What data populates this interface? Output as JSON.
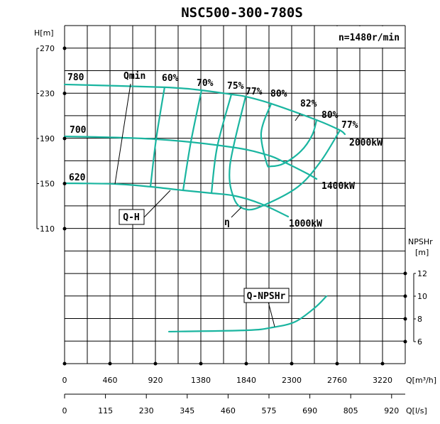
{
  "chart_data": {
    "type": "line",
    "title": "NSC500-300-780S",
    "speed_label": "n=1480r/min",
    "x_axis": {
      "label": "Q[m³/h]",
      "range": [
        0,
        3450
      ],
      "ticks": [
        "0",
        "460",
        "920",
        "1380",
        "1840",
        "2300",
        "2760",
        "3220"
      ]
    },
    "x2_axis": {
      "label": "Q[l/s]",
      "ticks": [
        "0",
        "115",
        "230",
        "345",
        "460",
        "575",
        "690",
        "805",
        "920"
      ]
    },
    "y_axis": {
      "label": "H[m]",
      "ticks": [
        "270",
        "230",
        "190",
        "150",
        "110"
      ]
    },
    "y2_axis": {
      "label": "NPSHr",
      "unit": "[m]",
      "ticks": [
        "12",
        "10",
        "8",
        "6"
      ]
    },
    "grid": true,
    "series": [
      {
        "name": "780",
        "kind": "Q-H",
        "points": [
          [
            0,
            237.9
          ],
          [
            1013,
            235.4
          ],
          [
            1387,
            232.8
          ],
          [
            1689,
            229.1
          ],
          [
            1833,
            227.2
          ],
          [
            2092,
            220.9
          ],
          [
            2552,
            206.4
          ],
          [
            2782,
            197.6
          ],
          [
            2839,
            193.8
          ]
        ]
      },
      {
        "name": "700",
        "kind": "Q-H",
        "points": [
          [
            0,
            191.9
          ],
          [
            927,
            189.4
          ],
          [
            1689,
            182.4
          ],
          [
            2048,
            175.5
          ],
          [
            2221,
            169.2
          ],
          [
            2465,
            158.5
          ],
          [
            2552,
            154.1
          ]
        ]
      },
      {
        "name": "620",
        "kind": "Q-H",
        "points": [
          [
            0,
            150.3
          ],
          [
            510,
            149.7
          ],
          [
            870,
            147.2
          ],
          [
            1200,
            144.0
          ],
          [
            1488,
            141.5
          ],
          [
            1732,
            139.0
          ],
          [
            1991,
            132.0
          ],
          [
            2264,
            120.7
          ]
        ]
      },
      {
        "name": "60%",
        "kind": "efficiency",
        "points": [
          [
            1013,
            235.4
          ],
          [
            927,
            189.4
          ],
          [
            870,
            147.2
          ]
        ]
      },
      {
        "name": "70%",
        "kind": "efficiency",
        "points": [
          [
            1387,
            232.8
          ],
          [
            1279,
            186.8
          ],
          [
            1200,
            144.0
          ]
        ]
      },
      {
        "name": "75%",
        "kind": "efficiency",
        "points": [
          [
            1689,
            229.1
          ],
          [
            1545,
            182.4
          ],
          [
            1488,
            141.5
          ]
        ]
      },
      {
        "name": "77%",
        "kind": "efficiency",
        "points": [
          [
            1833,
            227.2
          ],
          [
            1675,
            166.0
          ],
          [
            1718,
            136.4
          ],
          [
            1847,
            127.0
          ],
          [
            2034,
            131.4
          ],
          [
            2365,
            147.2
          ],
          [
            2595,
            169.8
          ],
          [
            2782,
            196.3
          ]
        ]
      },
      {
        "name": "80%",
        "kind": "efficiency",
        "points": [
          [
            2092,
            220.9
          ],
          [
            1991,
            195.0
          ],
          [
            2048,
            167.9
          ],
          [
            2092,
            165.4
          ],
          [
            2221,
            167.9
          ],
          [
            2393,
            178.7
          ],
          [
            2508,
            193.1
          ],
          [
            2552,
            206.4
          ]
        ]
      },
      {
        "name": "Q-NPSHr",
        "kind": "npsh",
        "points": [
          [
            1057,
            6.88
          ],
          [
            1847,
            7.0
          ],
          [
            2106,
            7.25
          ],
          [
            2336,
            7.75
          ],
          [
            2537,
            9.0
          ],
          [
            2652,
            10.0
          ]
        ]
      }
    ],
    "annotations": {
      "impeller_780": "780",
      "impeller_700": "700",
      "impeller_620": "620",
      "qmin": "Qmin",
      "qh": "Q-H",
      "eta": "η",
      "qnpsh": "Q-NPSHr",
      "eff": [
        "60%",
        "70%",
        "75%",
        "77%",
        "80%",
        "82%",
        "80%",
        "77%"
      ],
      "power": [
        "2000kW",
        "1400kW",
        "1000kW"
      ]
    },
    "colors": {
      "curve": "#1ab5a0",
      "grid": "#000000"
    }
  }
}
